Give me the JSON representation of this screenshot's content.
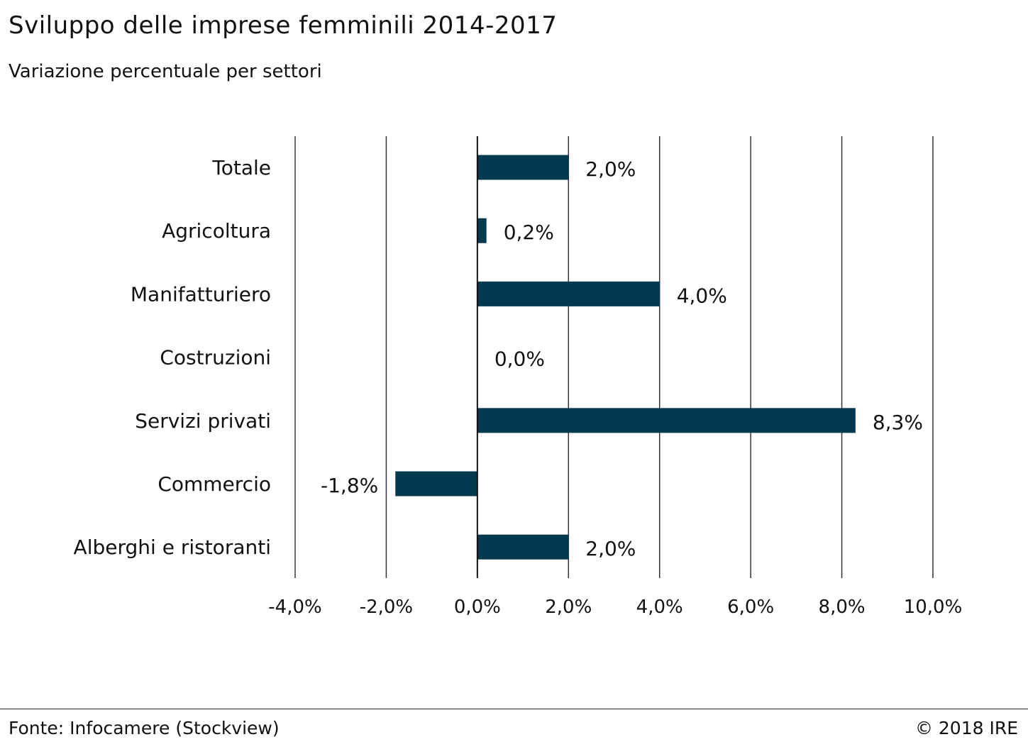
{
  "header": {
    "title": "Sviluppo delle imprese femminili 2014-2017",
    "subtitle": "Variazione percentuale per settori"
  },
  "footer": {
    "source": "Fonte: Infocamere (Stockview)",
    "copyright": "© 2018 IRE"
  },
  "colors": {
    "bar": "#043a4f",
    "grid": "#333333",
    "text": "#111111"
  },
  "chart_data": {
    "type": "bar",
    "orientation": "horizontal",
    "title": "Sviluppo delle imprese femminili 2014-2017",
    "subtitle": "Variazione percentuale per settori",
    "categories": [
      "Totale",
      "Agricoltura",
      "Manifatturiero",
      "Costruzioni",
      "Servizi privati",
      "Commercio",
      "Alberghi e ristoranti"
    ],
    "values": [
      2.0,
      0.2,
      4.0,
      0.0,
      8.3,
      -1.8,
      2.0
    ],
    "value_labels": [
      "2,0%",
      "0,2%",
      "4,0%",
      "0,0%",
      "8,3%",
      "-1,8%",
      "2,0%"
    ],
    "xlim": [
      -4,
      10
    ],
    "xticks": [
      -4,
      -2,
      0,
      2,
      4,
      6,
      8,
      10
    ],
    "xtick_labels": [
      "-4,0%",
      "-2,0%",
      "0,0%",
      "2,0%",
      "4,0%",
      "6,0%",
      "8,0%",
      "10,0%"
    ],
    "grid": "vertical",
    "legend": "none"
  }
}
